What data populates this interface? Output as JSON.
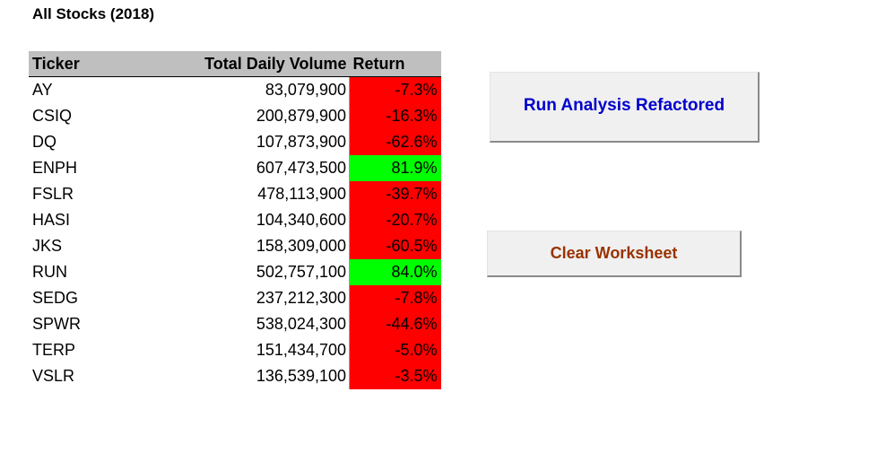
{
  "sheet": {
    "title": "All Stocks (2018)"
  },
  "table": {
    "headers": {
      "ticker": "Ticker",
      "volume": "Total Daily Volume",
      "return": "Return"
    },
    "rows": [
      {
        "ticker": "AY",
        "volume": "83,079,900",
        "return": "-7.3%",
        "status": "negative"
      },
      {
        "ticker": "CSIQ",
        "volume": "200,879,900",
        "return": "-16.3%",
        "status": "negative"
      },
      {
        "ticker": "DQ",
        "volume": "107,873,900",
        "return": "-62.6%",
        "status": "negative"
      },
      {
        "ticker": "ENPH",
        "volume": "607,473,500",
        "return": "81.9%",
        "status": "positive"
      },
      {
        "ticker": "FSLR",
        "volume": "478,113,900",
        "return": "-39.7%",
        "status": "negative"
      },
      {
        "ticker": "HASI",
        "volume": "104,340,600",
        "return": "-20.7%",
        "status": "negative"
      },
      {
        "ticker": "JKS",
        "volume": "158,309,000",
        "return": "-60.5%",
        "status": "negative"
      },
      {
        "ticker": "RUN",
        "volume": "502,757,100",
        "return": "84.0%",
        "status": "positive"
      },
      {
        "ticker": "SEDG",
        "volume": "237,212,300",
        "return": "-7.8%",
        "status": "negative"
      },
      {
        "ticker": "SPWR",
        "volume": "538,024,300",
        "return": "-44.6%",
        "status": "negative"
      },
      {
        "ticker": "TERP",
        "volume": "151,434,700",
        "return": "-5.0%",
        "status": "negative"
      },
      {
        "ticker": "VSLR",
        "volume": "136,539,100",
        "return": "-3.5%",
        "status": "negative"
      }
    ]
  },
  "buttons": {
    "run_label": "Run Analysis Refactored",
    "clear_label": "Clear Worksheet"
  },
  "colors": {
    "positive_fill": "#00ff00",
    "negative_fill": "#ff0000",
    "header_fill": "#bfbfbf",
    "run_button_text": "#0000cc",
    "clear_button_text": "#993300"
  }
}
